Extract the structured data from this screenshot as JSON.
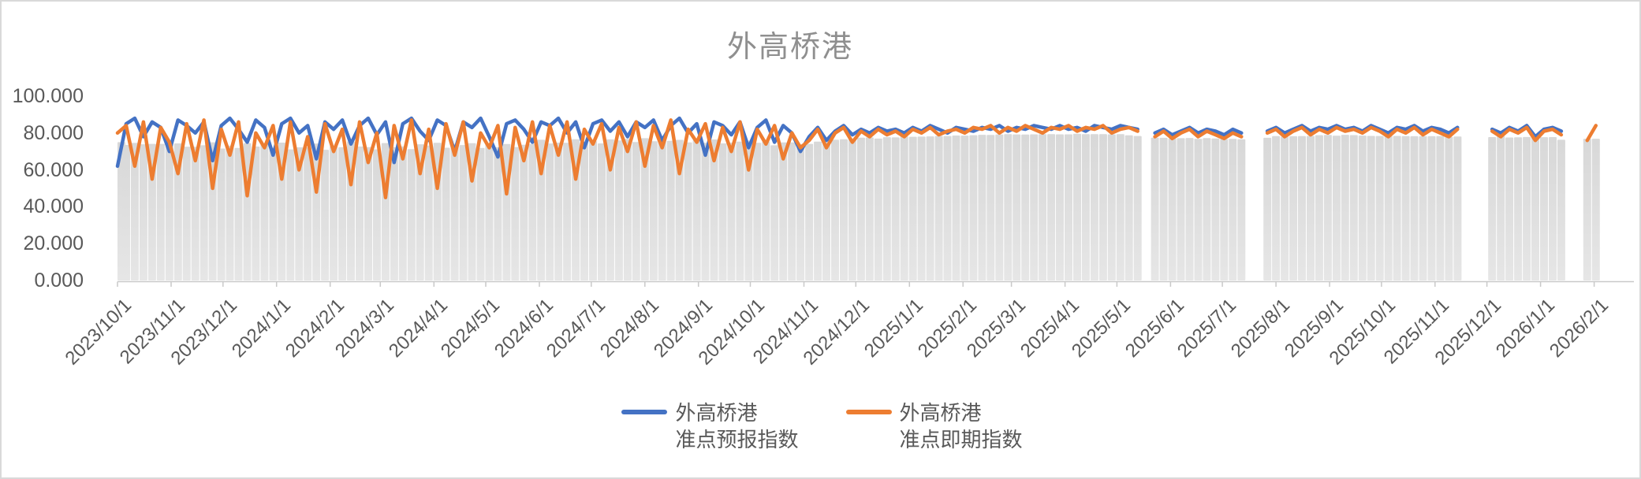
{
  "title": "外高桥港",
  "colors": {
    "forecast_line": "#4472C4",
    "spot_line": "#ED7D31",
    "bar_top": "#d8d8d8",
    "bar_bottom": "#e6e6e6",
    "axis_line": "#c9c9c9",
    "axis_text": "#595959",
    "title_text": "#8f8f8f",
    "chart_border": "#d9d9d9"
  },
  "chart_data": {
    "type": "line",
    "title": "外高桥港",
    "ylim": [
      0,
      100
    ],
    "grid": false,
    "legend_position": "bottom",
    "y_tick_values": [
      0,
      20,
      40,
      60,
      80,
      100
    ],
    "y_ticks": [
      "0.000",
      "20.000",
      "40.000",
      "60.000",
      "80.000",
      "100.000"
    ],
    "x_tick_labels": [
      "2023/10/1",
      "2023/11/1",
      "2023/12/1",
      "2024/1/1",
      "2024/2/1",
      "2024/3/1",
      "2024/4/1",
      "2024/5/1",
      "2024/6/1",
      "2024/7/1",
      "2024/8/1",
      "2024/9/1",
      "2024/10/1",
      "2024/11/1",
      "2024/12/1",
      "2025/1/1",
      "2025/2/1",
      "2025/3/1",
      "2025/4/1",
      "2025/5/1",
      "2025/6/1",
      "2025/7/1",
      "2025/8/1",
      "2025/9/1",
      "2025/10/1",
      "2025/11/1",
      "2025/12/1",
      "2026/1/1",
      "2026/2/1"
    ],
    "x_tick_days": [
      0,
      31,
      61,
      92,
      123,
      152,
      183,
      213,
      244,
      274,
      305,
      336,
      366,
      397,
      427,
      458,
      489,
      517,
      548,
      578,
      609,
      639,
      670,
      701,
      731,
      762,
      792,
      823,
      854
    ],
    "x_axis_span_days": 877,
    "start_date": "2023/10/1",
    "sample_step_days": 5,
    "background_bars": "light gray columns under the lines, one per sample, gaps where no data",
    "legend": [
      {
        "line1": "外高桥港",
        "line2": "准点预报指数"
      },
      {
        "line1": "外高桥港",
        "line2": "准点即期指数"
      }
    ],
    "series": [
      {
        "name": "外高桥港 准点预报指数",
        "color": "#4472C4",
        "values": [
          62,
          85,
          88,
          78,
          86,
          83,
          70,
          87,
          84,
          80,
          86,
          65,
          84,
          88,
          82,
          75,
          87,
          83,
          68,
          85,
          88,
          80,
          84,
          66,
          86,
          82,
          87,
          74,
          84,
          88,
          79,
          86,
          64,
          85,
          88,
          81,
          76,
          87,
          84,
          70,
          86,
          83,
          88,
          78,
          67,
          85,
          87,
          82,
          75,
          86,
          84,
          88,
          80,
          86,
          72,
          85,
          87,
          81,
          86,
          78,
          86,
          83,
          87,
          76,
          84,
          88,
          80,
          85,
          68,
          86,
          84,
          79,
          86,
          72,
          83,
          87,
          75,
          84,
          80,
          70,
          78,
          83,
          76,
          81,
          84,
          79,
          82,
          80,
          83,
          81,
          82,
          80,
          83,
          81,
          84,
          82,
          80,
          83,
          82,
          81,
          83,
          82,
          84,
          81,
          83,
          82,
          84,
          83,
          82,
          84,
          82,
          83,
          81,
          84,
          83,
          82,
          84,
          83,
          82,
          null,
          80,
          82,
          79,
          81,
          83,
          80,
          82,
          81,
          79,
          82,
          80,
          null,
          null,
          81,
          83,
          80,
          82,
          84,
          81,
          83,
          82,
          84,
          82,
          83,
          81,
          84,
          82,
          80,
          83,
          82,
          84,
          81,
          83,
          82,
          80,
          83,
          null,
          null,
          null,
          82,
          80,
          83,
          81,
          84,
          78,
          82,
          83,
          81,
          null,
          null,
          null,
          null
        ]
      },
      {
        "name": "外高桥港 准点即期指数",
        "color": "#ED7D31",
        "values": [
          80,
          84,
          62,
          86,
          55,
          83,
          75,
          58,
          85,
          65,
          87,
          50,
          82,
          68,
          86,
          46,
          80,
          72,
          84,
          55,
          86,
          60,
          78,
          48,
          85,
          70,
          82,
          52,
          86,
          64,
          80,
          45,
          84,
          66,
          87,
          58,
          82,
          50,
          85,
          68,
          86,
          54,
          80,
          72,
          84,
          47,
          83,
          65,
          86,
          58,
          84,
          68,
          86,
          55,
          82,
          74,
          85,
          60,
          83,
          70,
          86,
          62,
          84,
          72,
          87,
          58,
          82,
          75,
          85,
          65,
          83,
          70,
          86,
          60,
          82,
          74,
          84,
          66,
          80,
          72,
          76,
          82,
          72,
          80,
          83,
          75,
          81,
          78,
          82,
          79,
          81,
          78,
          82,
          80,
          83,
          79,
          81,
          82,
          80,
          83,
          82,
          84,
          80,
          83,
          81,
          84,
          82,
          80,
          83,
          82,
          84,
          81,
          83,
          82,
          84,
          80,
          82,
          83,
          81,
          null,
          78,
          81,
          77,
          80,
          82,
          78,
          81,
          79,
          77,
          80,
          78,
          null,
          null,
          80,
          82,
          78,
          81,
          83,
          79,
          82,
          80,
          83,
          81,
          82,
          80,
          83,
          81,
          78,
          82,
          80,
          83,
          79,
          82,
          80,
          78,
          82,
          null,
          null,
          null,
          81,
          78,
          82,
          80,
          83,
          76,
          81,
          82,
          79,
          null,
          null,
          76,
          84
        ]
      }
    ]
  }
}
